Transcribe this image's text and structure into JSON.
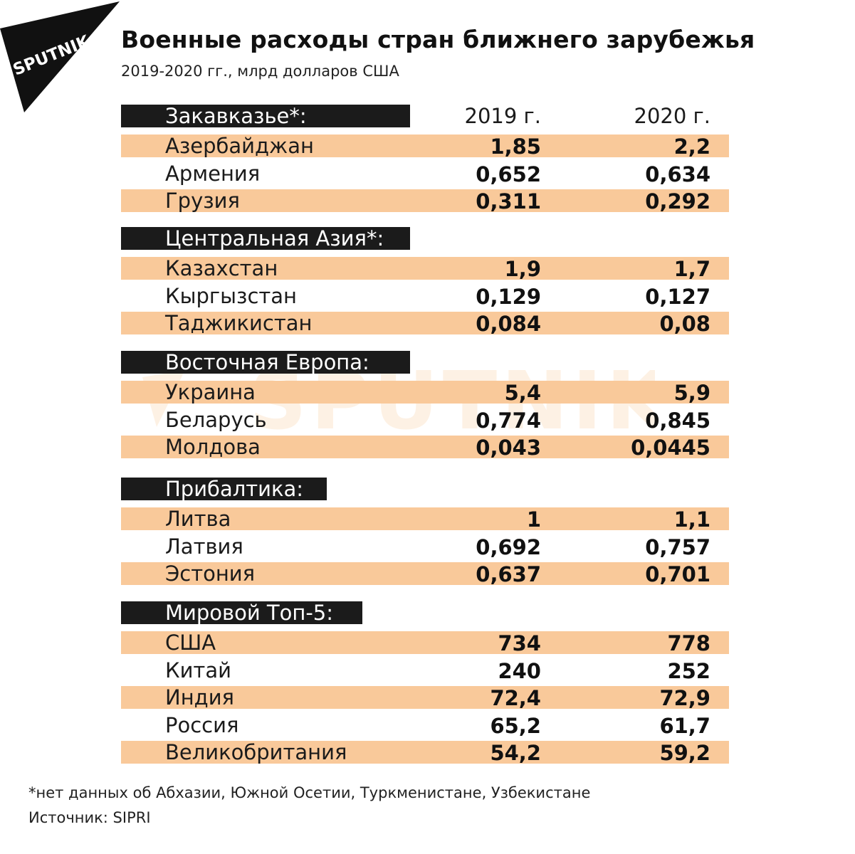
{
  "brand": {
    "logo_text": "SPUTNIK",
    "watermark_text": "SPUTNIK"
  },
  "title": "Военные расходы стран ближнего зарубежья",
  "subtitle": "2019-2020 гг., млрд долларов США",
  "chart_data": {
    "type": "table",
    "columns": [
      "2019 г.",
      "2020 г."
    ],
    "groups": [
      {
        "name": "Закавказье*:",
        "rows": [
          {
            "country": "Азербайджан",
            "y2019": "1,85",
            "y2020": "2,2"
          },
          {
            "country": "Армения",
            "y2019": "0,652",
            "y2020": "0,634"
          },
          {
            "country": "Грузия",
            "y2019": "0,311",
            "y2020": "0,292"
          }
        ]
      },
      {
        "name": "Центральная Азия*:",
        "rows": [
          {
            "country": "Казахстан",
            "y2019": "1,9",
            "y2020": "1,7"
          },
          {
            "country": "Кыргызстан",
            "y2019": "0,129",
            "y2020": "0,127"
          },
          {
            "country": "Таджикистан",
            "y2019": "0,084",
            "y2020": "0,08"
          }
        ]
      },
      {
        "name": "Восточная Европа:",
        "rows": [
          {
            "country": "Украина",
            "y2019": "5,4",
            "y2020": "5,9"
          },
          {
            "country": "Беларусь",
            "y2019": "0,774",
            "y2020": "0,845"
          },
          {
            "country": "Молдова",
            "y2019": "0,043",
            "y2020": "0,0445"
          }
        ]
      },
      {
        "name": "Прибалтика:",
        "rows": [
          {
            "country": "Литва",
            "y2019": "1",
            "y2020": "1,1"
          },
          {
            "country": "Латвия",
            "y2019": "0,692",
            "y2020": "0,757"
          },
          {
            "country": "Эстония",
            "y2019": "0,637",
            "y2020": "0,701"
          }
        ]
      },
      {
        "name": "Мировой Топ-5:",
        "rows": [
          {
            "country": "США",
            "y2019": "734",
            "y2020": "778"
          },
          {
            "country": "Китай",
            "y2019": "240",
            "y2020": "252"
          },
          {
            "country": "Индия",
            "y2019": "72,4",
            "y2020": "72,9"
          },
          {
            "country": "Россия",
            "y2019": "65,2",
            "y2020": "61,7"
          },
          {
            "country": "Великобритания",
            "y2019": "54,2",
            "y2020": "59,2"
          }
        ]
      }
    ]
  },
  "footnote": "*нет данных об Абхазии, Южной Осетии, Туркменистане, Узбекистане",
  "source": "Источник: SIPRI",
  "colors": {
    "row_shade": "#f9c99a",
    "header_bar": "#1b1b1b",
    "text": "#1b1b1b",
    "logo": "#111111",
    "watermark": "#f59a3a"
  }
}
